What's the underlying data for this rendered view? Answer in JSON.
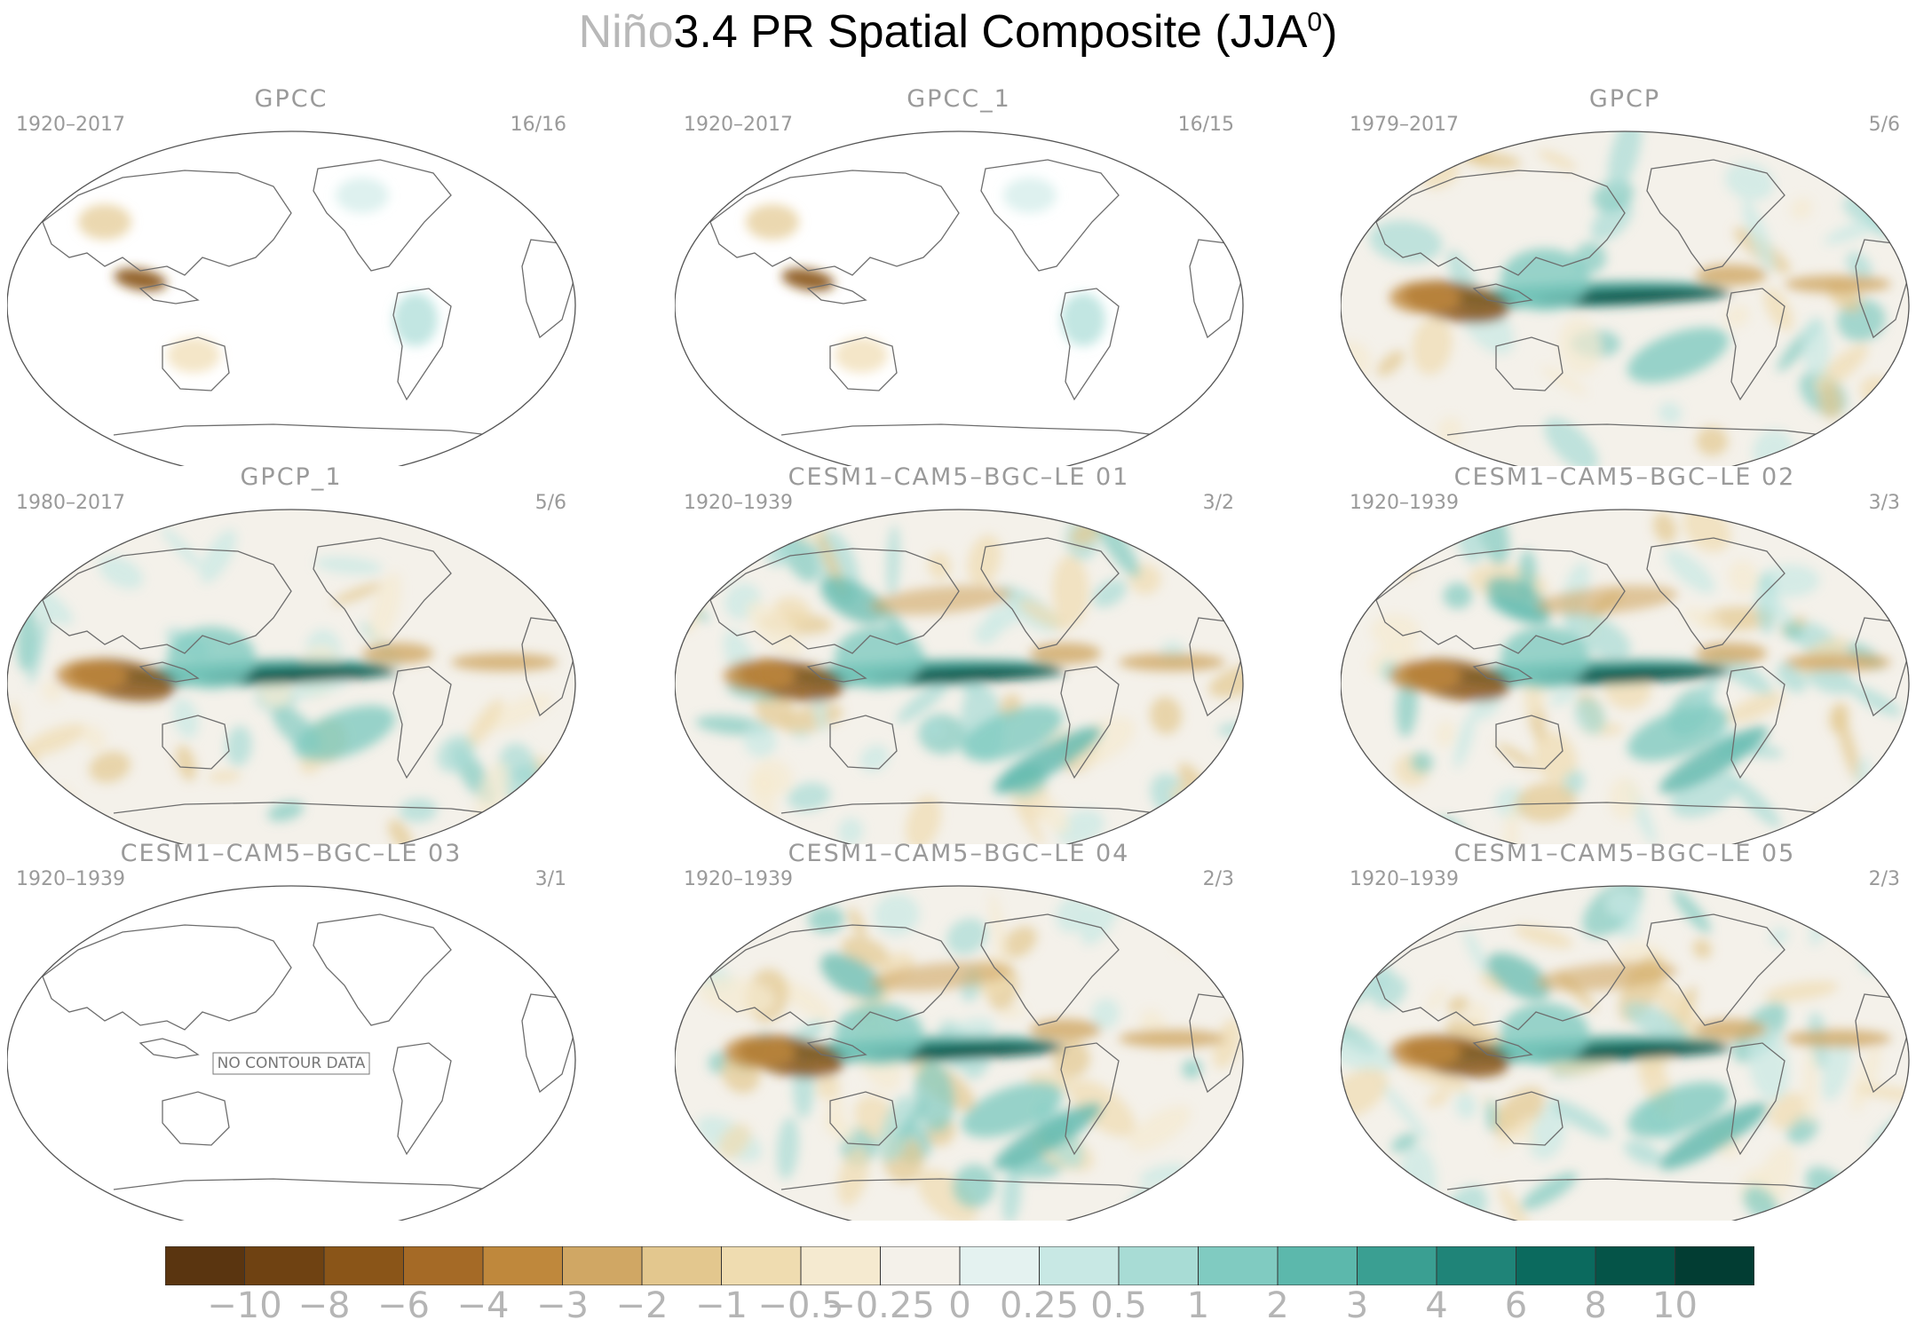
{
  "title": {
    "prefix": "Niño",
    "main": "3.4 PR Spatial Composite (JJA",
    "sup": "0",
    "suffix": ")"
  },
  "panels": [
    {
      "title": "GPCC",
      "years": "1920–2017",
      "count": "16/16",
      "style": "land"
    },
    {
      "title": "GPCC_1",
      "years": "1920–2017",
      "count": "16/15",
      "style": "land"
    },
    {
      "title": "GPCP",
      "years": "1979–2017",
      "count": "5/6",
      "style": "obs"
    },
    {
      "title": "GPCP_1",
      "years": "1980–2017",
      "count": "5/6",
      "style": "obs"
    },
    {
      "title": "CESM1–CAM5–BGC–LE 01",
      "years": "1920–1939",
      "count": "3/2",
      "style": "model"
    },
    {
      "title": "CESM1–CAM5–BGC–LE 02",
      "years": "1920–1939",
      "count": "3/3",
      "style": "model"
    },
    {
      "title": "CESM1–CAM5–BGC–LE 03",
      "years": "1920–1939",
      "count": "3/1",
      "style": "empty",
      "note": "NO CONTOUR DATA"
    },
    {
      "title": "CESM1–CAM5–BGC–LE 04",
      "years": "1920–1939",
      "count": "2/3",
      "style": "model"
    },
    {
      "title": "CESM1–CAM5–BGC–LE 05",
      "years": "1920–1939",
      "count": "2/3",
      "style": "model"
    }
  ],
  "colorbar": {
    "colors": [
      "#5a3510",
      "#6f4212",
      "#8a5518",
      "#a56a26",
      "#bf883c",
      "#d0a764",
      "#e3c78e",
      "#efdcb0",
      "#f5ead0",
      "#f4f1ea",
      "#e4f2f0",
      "#c8e8e4",
      "#a8dcd5",
      "#80cbc1",
      "#5cb8ac",
      "#3a9f92",
      "#1f8478",
      "#0b6a5e",
      "#055448",
      "#023d33"
    ],
    "labels": [
      "−10",
      "−8",
      "−6",
      "−4",
      "−3",
      "−2",
      "−1",
      "−0.5",
      "−0.25",
      "0",
      "0.25",
      "0.5",
      "1",
      "2",
      "3",
      "4",
      "6",
      "8",
      "10"
    ]
  }
}
